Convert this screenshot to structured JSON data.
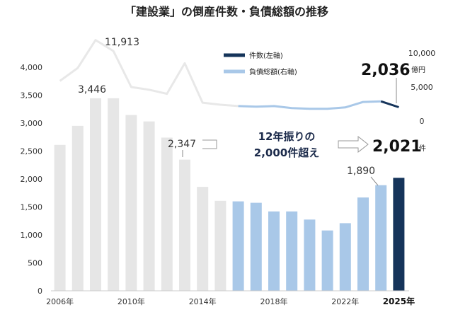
{
  "chart_data": {
    "type": "bar+line",
    "title": "「建設業」の倒産件数・負債総額の推移",
    "years": [
      2006,
      2007,
      2008,
      2009,
      2010,
      2011,
      2012,
      2013,
      2014,
      2015,
      2016,
      2017,
      2018,
      2019,
      2020,
      2021,
      2022,
      2023,
      2024,
      2025
    ],
    "x_tick_labels": [
      {
        "year": 2006,
        "label": "2006年"
      },
      {
        "year": 2010,
        "label": "2010年"
      },
      {
        "year": 2014,
        "label": "2014年"
      },
      {
        "year": 2018,
        "label": "2018年"
      },
      {
        "year": 2022,
        "label": "2022年"
      },
      {
        "year": 2025,
        "label": "2025年"
      }
    ],
    "series": [
      {
        "name": "件数(左軸)",
        "axis": "left",
        "kind": "bar",
        "values": [
          2610,
          2950,
          3446,
          3446,
          3145,
          3030,
          2740,
          2347,
          1860,
          1610,
          1600,
          1575,
          1420,
          1420,
          1275,
          1080,
          1210,
          1670,
          1890,
          2021
        ]
      },
      {
        "name": "負債総額(右軸)",
        "axis": "right",
        "kind": "line",
        "values": [
          5900,
          7800,
          11913,
          10300,
          5000,
          4600,
          4000,
          8500,
          2700,
          2400,
          2200,
          2100,
          2200,
          1900,
          1800,
          1800,
          2000,
          2800,
          2900,
          2036
        ]
      }
    ],
    "bar_colors": {
      "early": "#e6e6e6",
      "mid": "#a9c8e8",
      "latest": "#15345a"
    },
    "line_colors": {
      "early": "#e8e8e8",
      "mid": "#a9c8e8",
      "latest": "#15345a"
    },
    "highlight_start_year": 2016,
    "left_axis": {
      "min": 0,
      "max": 4000,
      "ticks": [
        "0",
        "500",
        "1,000",
        "1,500",
        "2,000",
        "2,500",
        "3,000",
        "3,500",
        "4,000"
      ],
      "tick_values": [
        0,
        500,
        1000,
        1500,
        2000,
        2500,
        3000,
        3500,
        4000
      ]
    },
    "right_axis": {
      "min": -1500,
      "max": 12500,
      "ticks": [
        "0",
        "5,000",
        "10,000"
      ],
      "tick_values": [
        0,
        5000,
        10000
      ]
    },
    "legend": [
      {
        "label": "件数(左軸)",
        "color": "#15345a"
      },
      {
        "label": "負債総額(右軸)",
        "color": "#a9c8e8"
      }
    ],
    "data_labels": [
      {
        "text": "11,913",
        "year": 2008,
        "series": "line"
      },
      {
        "text": "3,446",
        "year": 2008,
        "series": "bar"
      },
      {
        "text": "2,347",
        "year": 2013,
        "series": "bar"
      },
      {
        "text": "1,890",
        "year": 2024,
        "series": "bar"
      }
    ],
    "callouts": {
      "debt_value": "2,036",
      "debt_unit": "億円",
      "count_value": "2,021",
      "count_unit": "件"
    },
    "annotation": {
      "line1": "12年振りの",
      "line2": "2,000件超え"
    },
    "grid": false
  }
}
